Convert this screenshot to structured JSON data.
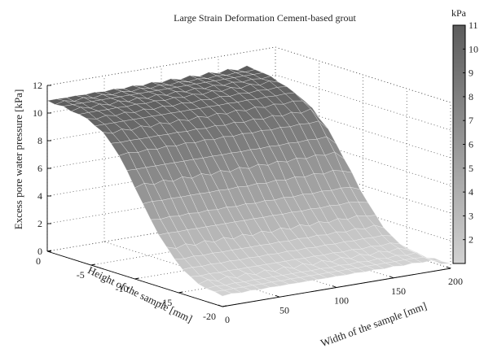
{
  "chart_data": {
    "type": "surface",
    "title": "Large Strain Deformation  Cement-based grout",
    "zlabel": "Excess pore water pressure [kPa]",
    "ylabel": "Height of the sample [mm]",
    "xlabel": "Width of the sample [mm]",
    "colorbar_label": "kPa",
    "zlim": [
      0,
      12
    ],
    "zticks": [
      "0",
      "2",
      "4",
      "6",
      "8",
      "10",
      "12"
    ],
    "xlim": [
      0,
      200
    ],
    "xticks": [
      "0",
      "50",
      "100",
      "150",
      "200"
    ],
    "ylim": [
      -20,
      0
    ],
    "yticks": [
      "0",
      "-5",
      "-10",
      "-15",
      "-20"
    ],
    "colorbar_ticks": [
      "11",
      "10",
      "9",
      "8",
      "7",
      "6",
      "5",
      "4",
      "3",
      "2"
    ],
    "colorbar_range": [
      1,
      11
    ],
    "grid": true,
    "colormap": "gray",
    "surface_note_heights": {
      "height_mm": [
        0,
        -2,
        -4,
        -6,
        -8,
        -10,
        -12,
        -14,
        -16,
        -18,
        -20
      ],
      "pressure_kpa": [
        10.9,
        10.85,
        10.6,
        10.0,
        8.8,
        6.7,
        4.4,
        2.6,
        1.5,
        1.0,
        0.8
      ]
    },
    "width_decay_start_mm": 180,
    "width_decay_end_kpa": 0.3
  }
}
